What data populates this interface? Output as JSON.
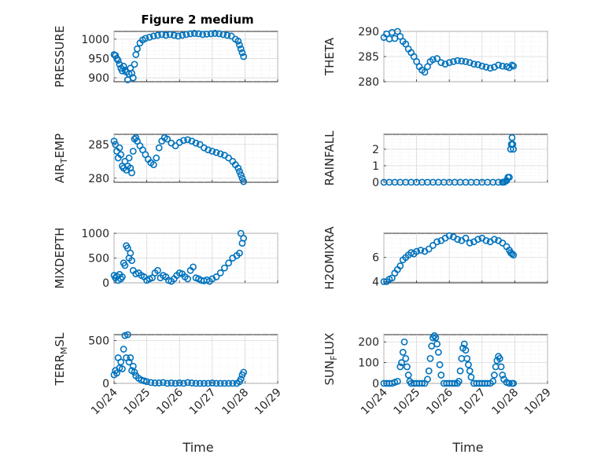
{
  "figure_title": "Figure 2 medium",
  "x_axis_label": "Time",
  "marker_color": "#0072BD",
  "chart_data": [
    {
      "type": "scatter",
      "ylabel": "PRESSURE",
      "ylabel_sub": "",
      "ylabel_suffix": "",
      "ylim": [
        890,
        1020
      ],
      "yticks": [
        900,
        950,
        1000
      ],
      "xlim": [
        "10/24",
        "10/29"
      ],
      "xticks": [
        "10/24",
        "10/25",
        "10/26",
        "10/27",
        "10/28",
        "10/29"
      ],
      "grid": true,
      "minor_grid": true,
      "range_labels": []
    },
    {
      "type": "scatter",
      "ylabel": "THETA",
      "ylabel_sub": "",
      "ylabel_suffix": "",
      "ylim": [
        280,
        290
      ],
      "yticks": [
        280,
        285,
        290
      ],
      "xlim": [
        "10/24",
        "10/29"
      ],
      "xticks": [
        "10/24",
        "10/25",
        "10/26",
        "10/27",
        "10/28",
        "10/29"
      ],
      "grid": true,
      "minor_grid": true,
      "range_labels": []
    },
    {
      "type": "scatter",
      "ylabel": "AIR",
      "ylabel_sub": "T",
      "ylabel_suffix": "EMP",
      "ylim": [
        279.4,
        286.5
      ],
      "yticks": [
        280,
        285
      ],
      "xlim": [
        "10/24",
        "10/29"
      ],
      "xticks": [
        "10/24",
        "10/25",
        "10/26",
        "10/27",
        "10/28",
        "10/29"
      ],
      "grid": true,
      "minor_grid": true,
      "range_labels": []
    },
    {
      "type": "scatter",
      "ylabel": "RAINFALL",
      "ylabel_sub": "",
      "ylabel_suffix": "",
      "ylim": [
        0,
        2.9
      ],
      "yticks": [
        0,
        1,
        2
      ],
      "xlim": [
        "10/24",
        "10/29"
      ],
      "xticks": [
        "10/24",
        "10/25",
        "10/26",
        "10/27",
        "10/28",
        "10/29"
      ],
      "grid": true,
      "minor_grid": true,
      "range_labels": []
    },
    {
      "type": "scatter",
      "ylabel": "MIXDEPTH",
      "ylabel_sub": "",
      "ylabel_suffix": "",
      "ylim": [
        0,
        1000
      ],
      "yticks": [
        0,
        500,
        1000
      ],
      "xlim": [
        "10/24",
        "10/29"
      ],
      "xticks": [
        "10/24",
        "10/25",
        "10/26",
        "10/27",
        "10/28",
        "10/29"
      ],
      "grid": true,
      "minor_grid": true,
      "range_labels": []
    },
    {
      "type": "scatter",
      "ylabel": "H2OMIXRA",
      "ylabel_sub": "",
      "ylabel_suffix": "",
      "ylim": [
        3.9,
        8.0
      ],
      "yticks": [
        4,
        6
      ],
      "xlim": [
        "10/24",
        "10/29"
      ],
      "xticks": [
        "10/24",
        "10/25",
        "10/26",
        "10/27",
        "10/28",
        "10/29"
      ],
      "grid": true,
      "minor_grid": true,
      "range_labels": []
    },
    {
      "type": "scatter",
      "ylabel": "TERR",
      "ylabel_sub": "M",
      "ylabel_suffix": "SL",
      "ylim": [
        0,
        570
      ],
      "yticks": [
        0,
        500
      ],
      "xlim": [
        "10/24",
        "10/29"
      ],
      "xticks": [
        "10/24",
        "10/25",
        "10/26",
        "10/27",
        "10/28",
        "10/29"
      ],
      "grid": true,
      "minor_grid": true,
      "range_labels": [
        "10/24",
        "10/25",
        "10/26",
        "10/27",
        "10/28",
        "10/29"
      ]
    },
    {
      "type": "scatter",
      "ylabel": "SUN",
      "ylabel_sub": "F",
      "ylabel_suffix": "LUX",
      "ylim": [
        0,
        235
      ],
      "yticks": [
        0,
        100,
        200
      ],
      "xlim": [
        "10/24",
        "10/29"
      ],
      "xticks": [
        "10/24",
        "10/25",
        "10/26",
        "10/27",
        "10/28",
        "10/29"
      ],
      "grid": true,
      "minor_grid": true,
      "range_labels": [
        "10/24",
        "10/25",
        "10/26",
        "10/27",
        "10/28",
        "10/29"
      ]
    }
  ],
  "series_data": [
    {
      "x": [
        "10/24 00:00",
        "10/24 01:00",
        "10/24 02:00",
        "10/24 03:00",
        "10/24 04:00",
        "10/24 05:00",
        "10/24 06:00",
        "10/24 07:00",
        "10/24 08:00",
        "10/24 09:00",
        "10/24 10:00",
        "10/24 11:00",
        "10/24 12:00",
        "10/24 13:00",
        "10/24 14:00",
        "10/24 15:00",
        "10/24 16:00",
        "10/24 17:00",
        "10/24 19:00",
        "10/24 21:00",
        "10/24 23:00",
        "10/25 02:00",
        "10/25 05:00",
        "10/25 08:00",
        "10/25 11:00",
        "10/25 14:00",
        "10/25 17:00",
        "10/25 20:00",
        "10/25 23:00",
        "10/26 02:00",
        "10/26 05:00",
        "10/26 08:00",
        "10/26 11:00",
        "10/26 14:00",
        "10/26 17:00",
        "10/26 20:00",
        "10/26 23:00",
        "10/27 02:00",
        "10/27 05:00",
        "10/27 08:00",
        "10/27 11:00",
        "10/27 14:00",
        "10/27 17:00",
        "10/27 19:00",
        "10/27 20:00",
        "10/27 21:00",
        "10/27 22:00",
        "10/27 23:00"
      ],
      "y": [
        960,
        958,
        950,
        945,
        935,
        925,
        918,
        930,
        920,
        915,
        895,
        910,
        925,
        912,
        900,
        935,
        960,
        975,
        990,
        998,
        1002,
        1005,
        1008,
        1010,
        1012,
        1010,
        1012,
        1010,
        1008,
        1010,
        1012,
        1014,
        1015,
        1014,
        1012,
        1013,
        1014,
        1015,
        1014,
        1012,
        1010,
        1008,
        1000,
        995,
        985,
        975,
        965,
        955
      ]
    },
    {
      "x": [
        "10/24 00:00",
        "10/24 02:00",
        "10/24 04:00",
        "10/24 06:00",
        "10/24 08:00",
        "10/24 10:00",
        "10/24 12:00",
        "10/24 14:00",
        "10/24 16:00",
        "10/24 18:00",
        "10/24 20:00",
        "10/24 22:00",
        "10/25 00:00",
        "10/25 02:00",
        "10/25 04:00",
        "10/25 06:00",
        "10/25 08:00",
        "10/25 10:00",
        "10/25 12:00",
        "10/25 15:00",
        "10/25 18:00",
        "10/25 21:00",
        "10/26 00:00",
        "10/26 03:00",
        "10/26 06:00",
        "10/26 09:00",
        "10/26 12:00",
        "10/26 15:00",
        "10/26 18:00",
        "10/26 21:00",
        "10/27 00:00",
        "10/27 03:00",
        "10/27 06:00",
        "10/27 09:00",
        "10/27 12:00",
        "10/27 15:00",
        "10/27 18:00",
        "10/27 20:00",
        "10/27 22:00",
        "10/27 23:00"
      ],
      "y": [
        288.8,
        289.5,
        288.5,
        289.8,
        288.6,
        290.2,
        289.0,
        288.0,
        287.5,
        286.5,
        285.8,
        285.0,
        284.0,
        283.0,
        282.3,
        281.9,
        283.0,
        284.0,
        284.4,
        284.6,
        283.8,
        283.5,
        283.8,
        284.0,
        284.2,
        284.1,
        284.0,
        283.8,
        283.5,
        283.4,
        283.1,
        282.9,
        282.7,
        282.9,
        283.3,
        283.1,
        283.0,
        282.8,
        283.3,
        283.1
      ]
    },
    {
      "x": [
        "10/24 00:00",
        "10/24 01:00",
        "10/24 02:00",
        "10/24 03:00",
        "10/24 04:00",
        "10/24 05:00",
        "10/24 06:00",
        "10/24 07:00",
        "10/24 08:00",
        "10/24 09:00",
        "10/24 10:00",
        "10/24 11:00",
        "10/24 12:00",
        "10/24 13:00",
        "10/24 14:00",
        "10/24 15:00",
        "10/24 16:00",
        "10/24 17:00",
        "10/24 19:00",
        "10/24 21:00",
        "10/24 23:00",
        "10/25 01:00",
        "10/25 03:00",
        "10/25 05:00",
        "10/25 07:00",
        "10/25 09:00",
        "10/25 11:00",
        "10/25 13:00",
        "10/25 15:00",
        "10/25 18:00",
        "10/25 21:00",
        "10/26 00:00",
        "10/26 03:00",
        "10/26 06:00",
        "10/26 09:00",
        "10/26 12:00",
        "10/26 15:00",
        "10/26 18:00",
        "10/26 21:00",
        "10/27 00:00",
        "10/27 03:00",
        "10/27 06:00",
        "10/27 09:00",
        "10/27 12:00",
        "10/27 15:00",
        "10/27 17:00",
        "10/27 19:00",
        "10/27 20:00",
        "10/27 21:00",
        "10/27 22:00",
        "10/27 23:00"
      ],
      "y": [
        285.5,
        285.0,
        284.0,
        283.0,
        284.5,
        283.5,
        281.8,
        281.5,
        282.5,
        281.2,
        281.8,
        283.0,
        281.5,
        280.8,
        284.0,
        285.8,
        286.0,
        285.5,
        284.8,
        284.2,
        283.5,
        282.8,
        282.3,
        282.0,
        283.0,
        284.5,
        285.5,
        286.0,
        285.8,
        285.2,
        284.8,
        285.3,
        285.6,
        285.7,
        285.5,
        285.2,
        285.0,
        284.5,
        284.2,
        284.0,
        283.8,
        283.6,
        283.4,
        283.0,
        282.5,
        282.0,
        281.5,
        281.0,
        280.5,
        280.0,
        279.5
      ]
    },
    {
      "x": [
        "10/24 00:00",
        "10/24 04:00",
        "10/24 08:00",
        "10/24 12:00",
        "10/24 16:00",
        "10/24 20:00",
        "10/25 00:00",
        "10/25 04:00",
        "10/25 08:00",
        "10/25 12:00",
        "10/25 16:00",
        "10/25 20:00",
        "10/26 00:00",
        "10/26 04:00",
        "10/26 08:00",
        "10/26 12:00",
        "10/26 16:00",
        "10/26 20:00",
        "10/27 00:00",
        "10/27 04:00",
        "10/27 08:00",
        "10/27 12:00",
        "10/27 15:00",
        "10/27 16:00",
        "10/27 17:00",
        "10/27 18:00",
        "10/27 19:00",
        "10/27 20:00",
        "10/27 21:00",
        "10/27 21:30",
        "10/27 22:00",
        "10/27 22:30",
        "10/27 23:00"
      ],
      "y": [
        0,
        0,
        0,
        0,
        0,
        0,
        0,
        0,
        0,
        0,
        0,
        0,
        0,
        0,
        0,
        0,
        0,
        0,
        0,
        0,
        0,
        0,
        0,
        0,
        0.05,
        0.1,
        0.3,
        0.3,
        2.0,
        2.3,
        2.7,
        2.3,
        2.0
      ]
    },
    {
      "x": [
        "10/24 00:00",
        "10/24 01:00",
        "10/24 02:00",
        "10/24 03:00",
        "10/24 04:00",
        "10/24 05:00",
        "10/24 06:00",
        "10/24 07:00",
        "10/24 08:00",
        "10/24 09:00",
        "10/24 10:00",
        "10/24 11:00",
        "10/24 12:00",
        "10/24 13:00",
        "10/24 14:00",
        "10/24 16:00",
        "10/24 18:00",
        "10/24 20:00",
        "10/24 22:00",
        "10/25 00:00",
        "10/25 02:00",
        "10/25 04:00",
        "10/25 06:00",
        "10/25 08:00",
        "10/25 10:00",
        "10/25 12:00",
        "10/25 14:00",
        "10/25 16:00",
        "10/25 18:00",
        "10/25 20:00",
        "10/25 22:00",
        "10/26 00:00",
        "10/26 02:00",
        "10/26 04:00",
        "10/26 06:00",
        "10/26 08:00",
        "10/26 10:00",
        "10/26 12:00",
        "10/26 14:00",
        "10/26 16:00",
        "10/26 18:00",
        "10/26 20:00",
        "10/26 22:00",
        "10/27 00:00",
        "10/27 03:00",
        "10/27 06:00",
        "10/27 09:00",
        "10/27 12:00",
        "10/27 15:00",
        "10/27 18:00",
        "10/27 20:00",
        "10/27 21:00",
        "10/27 22:00",
        "10/27 23:00"
      ],
      "y": [
        150,
        100,
        130,
        50,
        170,
        80,
        120,
        400,
        350,
        750,
        700,
        500,
        600,
        450,
        250,
        180,
        200,
        150,
        120,
        50,
        80,
        100,
        200,
        250,
        100,
        150,
        120,
        50,
        30,
        80,
        150,
        200,
        180,
        120,
        80,
        250,
        320,
        100,
        80,
        50,
        40,
        60,
        30,
        80,
        120,
        200,
        300,
        400,
        500,
        550,
        600,
        1000,
        800,
        900
      ]
    },
    {
      "x": [
        "10/24 00:00",
        "10/24 02:00",
        "10/24 04:00",
        "10/24 06:00",
        "10/24 08:00",
        "10/24 10:00",
        "10/24 12:00",
        "10/24 14:00",
        "10/24 16:00",
        "10/24 18:00",
        "10/24 20:00",
        "10/24 22:00",
        "10/25 00:00",
        "10/25 03:00",
        "10/25 06:00",
        "10/25 09:00",
        "10/25 12:00",
        "10/25 15:00",
        "10/25 18:00",
        "10/25 21:00",
        "10/26 00:00",
        "10/26 03:00",
        "10/26 06:00",
        "10/26 09:00",
        "10/26 12:00",
        "10/26 15:00",
        "10/26 18:00",
        "10/26 21:00",
        "10/27 00:00",
        "10/27 03:00",
        "10/27 06:00",
        "10/27 09:00",
        "10/27 12:00",
        "10/27 15:00",
        "10/27 18:00",
        "10/27 20:00",
        "10/27 21:00",
        "10/27 22:00",
        "10/27 23:00"
      ],
      "y": [
        4.0,
        4.0,
        4.2,
        4.3,
        4.7,
        5.0,
        5.3,
        5.8,
        6.0,
        6.2,
        6.4,
        6.3,
        6.5,
        6.6,
        6.5,
        6.7,
        7.0,
        7.3,
        7.4,
        7.6,
        7.8,
        7.7,
        7.5,
        7.4,
        7.6,
        7.2,
        7.3,
        7.5,
        7.6,
        7.4,
        7.3,
        7.5,
        7.4,
        7.2,
        6.9,
        6.6,
        6.4,
        6.3,
        6.2
      ]
    },
    {
      "x": [
        "10/24 00:00",
        "10/24 01:00",
        "10/24 02:00",
        "10/24 03:00",
        "10/24 04:00",
        "10/24 05:00",
        "10/24 06:00",
        "10/24 07:00",
        "10/24 08:00",
        "10/24 09:00",
        "10/24 10:00",
        "10/24 11:00",
        "10/24 12:00",
        "10/24 13:00",
        "10/24 14:00",
        "10/24 15:00",
        "10/24 16:00",
        "10/24 18:00",
        "10/24 20:00",
        "10/24 22:00",
        "10/25 00:00",
        "10/25 03:00",
        "10/25 06:00",
        "10/25 09:00",
        "10/25 12:00",
        "10/25 15:00",
        "10/25 18:00",
        "10/25 21:00",
        "10/26 00:00",
        "10/26 03:00",
        "10/26 06:00",
        "10/26 09:00",
        "10/26 12:00",
        "10/26 15:00",
        "10/26 18:00",
        "10/26 21:00",
        "10/27 00:00",
        "10/27 03:00",
        "10/27 06:00",
        "10/27 09:00",
        "10/27 12:00",
        "10/27 15:00",
        "10/27 18:00",
        "10/27 20:00",
        "10/27 21:00",
        "10/27 22:00",
        "10/27 23:00"
      ],
      "y": [
        100,
        150,
        120,
        300,
        180,
        250,
        170,
        400,
        560,
        300,
        570,
        250,
        300,
        150,
        200,
        130,
        90,
        60,
        40,
        30,
        20,
        10,
        5,
        5,
        10,
        0,
        5,
        0,
        5,
        0,
        10,
        5,
        0,
        0,
        0,
        0,
        5,
        0,
        0,
        0,
        0,
        0,
        0,
        20,
        50,
        100,
        130
      ]
    },
    {
      "x": [
        "10/24 00:00",
        "10/24 02:00",
        "10/24 04:00",
        "10/24 06:00",
        "10/24 08:00",
        "10/24 10:00",
        "10/24 12:00",
        "10/24 13:00",
        "10/24 14:00",
        "10/24 15:00",
        "10/24 16:00",
        "10/24 17:00",
        "10/24 18:00",
        "10/24 19:00",
        "10/24 20:00",
        "10/24 22:00",
        "10/25 00:00",
        "10/25 02:00",
        "10/25 04:00",
        "10/25 06:00",
        "10/25 08:00",
        "10/25 09:00",
        "10/25 10:00",
        "10/25 11:00",
        "10/25 12:00",
        "10/25 13:00",
        "10/25 14:00",
        "10/25 15:00",
        "10/25 16:00",
        "10/25 17:00",
        "10/25 18:00",
        "10/25 20:00",
        "10/25 22:00",
        "10/26 00:00",
        "10/26 02:00",
        "10/26 04:00",
        "10/26 06:00",
        "10/26 07:00",
        "10/26 08:00",
        "10/26 09:00",
        "10/26 10:00",
        "10/26 11:00",
        "10/26 12:00",
        "10/26 13:00",
        "10/26 14:00",
        "10/26 15:00",
        "10/26 16:00",
        "10/26 18:00",
        "10/26 20:00",
        "10/26 22:00",
        "10/27 00:00",
        "10/27 02:00",
        "10/27 04:00",
        "10/27 06:00",
        "10/27 08:00",
        "10/27 09:00",
        "10/27 10:00",
        "10/27 11:00",
        "10/27 12:00",
        "10/27 13:00",
        "10/27 14:00",
        "10/27 15:00",
        "10/27 16:00",
        "10/27 18:00",
        "10/27 20:00",
        "10/27 22:00",
        "10/27 23:00"
      ],
      "y": [
        0,
        0,
        0,
        0,
        5,
        10,
        80,
        100,
        150,
        200,
        120,
        80,
        40,
        10,
        0,
        0,
        0,
        0,
        0,
        0,
        20,
        60,
        120,
        180,
        220,
        230,
        220,
        190,
        150,
        90,
        40,
        0,
        0,
        0,
        0,
        0,
        0,
        10,
        60,
        120,
        170,
        190,
        160,
        120,
        90,
        60,
        30,
        0,
        0,
        0,
        0,
        0,
        0,
        0,
        10,
        40,
        80,
        110,
        130,
        120,
        80,
        40,
        20,
        5,
        0,
        0,
        0
      ]
    }
  ]
}
